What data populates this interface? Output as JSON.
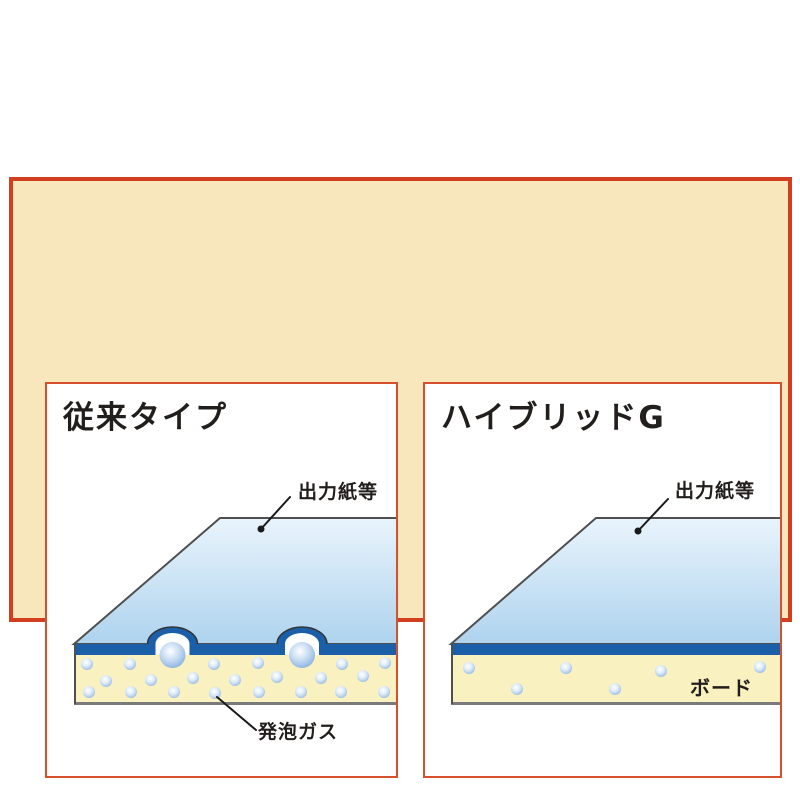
{
  "colors": {
    "frame_border": "#d23e20",
    "frame_background": "#f8e7bd",
    "panel_border": "#d5502b",
    "panel_background": "#ffffff",
    "surface_top": "#e9f4fc",
    "surface_bottom": "#aed3ee",
    "outline": "#4f4f4f",
    "adhesive_blue": "#1a5fa8",
    "foam_yellow": "#f9f1bf",
    "bubble_edge": "#8bb1e0",
    "pointer_black": "#1a1a1a",
    "text": "#221e1c"
  },
  "panels": [
    {
      "id": "conventional",
      "title": "従来タイプ",
      "labels": {
        "paper": "出力紙等",
        "gas": "発泡ガス"
      }
    },
    {
      "id": "hybrid",
      "title": "ハイブリッドG",
      "labels": {
        "paper": "出力紙等",
        "board": "ボード"
      }
    }
  ]
}
